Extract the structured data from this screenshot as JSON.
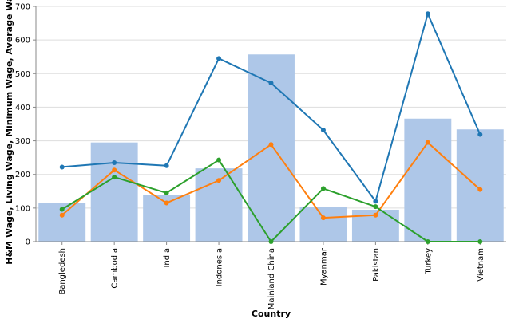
{
  "chart_data": {
    "type": "bar",
    "xlabel": "Country",
    "ylabel": "H&M Wage, Living Wage, Minimum Wage, Average Wage",
    "ylim": [
      0,
      700
    ],
    "yticks": [
      "0",
      "100",
      "200",
      "300",
      "400",
      "500",
      "600",
      "700"
    ],
    "grid": true,
    "categories": [
      "Bangledesh",
      "Cambodia",
      "India",
      "Indonesia",
      "Mainland China",
      "Myanmar",
      "Pakistan",
      "Turkey",
      "Vietnam"
    ],
    "bar_series": {
      "color": "#aec7e8",
      "values": [
        115,
        295,
        140,
        218,
        557,
        104,
        95,
        366,
        334
      ]
    },
    "line_series": [
      {
        "color": "#1f77b4",
        "values": [
          222,
          235,
          226,
          545,
          472,
          332,
          120,
          678,
          319
        ]
      },
      {
        "color": "#ff7f0e",
        "values": [
          79,
          213,
          115,
          182,
          289,
          71,
          79,
          295,
          155
        ]
      },
      {
        "color": "#2ca02c",
        "values": [
          96,
          192,
          145,
          243,
          0,
          158,
          104,
          0,
          0
        ]
      }
    ]
  }
}
